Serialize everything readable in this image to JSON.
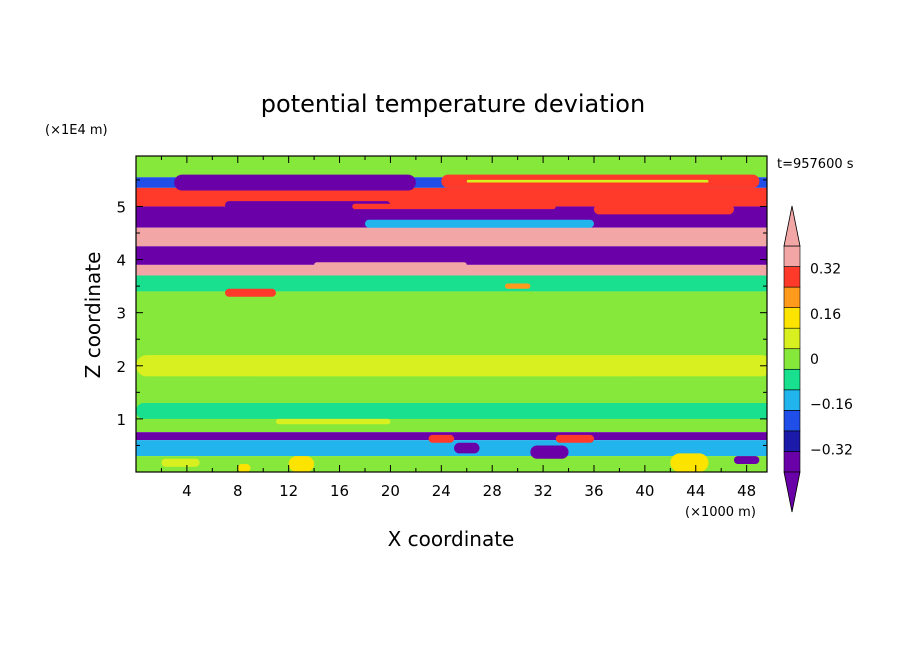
{
  "chart_data": {
    "type": "heatmap",
    "title": "potential temperature deviation",
    "xlabel": "X coordinate",
    "ylabel": "Z coordinate",
    "x_unit": "(×1000 m)",
    "y_unit": "(×1E4 m)",
    "time_label": "t=957600 s",
    "xlim": [
      0,
      49.6
    ],
    "ylim": [
      0,
      5.95
    ],
    "x_ticks": [
      4,
      8,
      12,
      16,
      20,
      24,
      28,
      32,
      36,
      40,
      44,
      48
    ],
    "y_ticks": [
      1,
      2,
      3,
      4,
      5
    ],
    "colorbar": {
      "labels": [
        "0.32",
        "0.16",
        "0",
        "−0.16",
        "−0.32"
      ],
      "label_values": [
        0.32,
        0.16,
        0,
        -0.16,
        -0.32
      ],
      "levels": [
        -0.4,
        -0.32,
        -0.24,
        -0.16,
        -0.08,
        0,
        0.08,
        0.16,
        0.24,
        0.32,
        0.4
      ],
      "colors": [
        "#6a00a8",
        "#1c1aa8",
        "#1f4fe8",
        "#22b4ec",
        "#18e08f",
        "#86e83a",
        "#d8f020",
        "#fde400",
        "#ff9a1c",
        "#ff3a2a",
        "#f3a6a6"
      ],
      "extend": "both"
    },
    "bands": [
      {
        "z0": 5.55,
        "z1": 5.95,
        "value": 0.0
      },
      {
        "z0": 5.35,
        "z1": 5.55,
        "value": -0.18
      },
      {
        "z0": 5.0,
        "z1": 5.35,
        "value": 0.36
      },
      {
        "z0": 4.6,
        "z1": 5.0,
        "value": -0.42
      },
      {
        "z0": 4.25,
        "z1": 4.6,
        "value": 0.4
      },
      {
        "z0": 3.9,
        "z1": 4.25,
        "value": -0.42
      },
      {
        "z0": 3.7,
        "z1": 3.9,
        "value": 0.4
      },
      {
        "z0": 3.4,
        "z1": 3.7,
        "value": -0.04
      },
      {
        "z0": 0.75,
        "z1": 3.4,
        "value": 0.02
      },
      {
        "z0": 0.6,
        "z1": 0.75,
        "value": -0.4
      },
      {
        "z0": 0.3,
        "z1": 0.6,
        "value": -0.12
      },
      {
        "z0": 0.0,
        "z1": 0.3,
        "value": 0.05
      }
    ],
    "features": [
      {
        "x0": 3,
        "x1": 22,
        "z0": 5.3,
        "z1": 5.6,
        "value": -0.44
      },
      {
        "x0": 24,
        "x1": 49,
        "z0": 5.35,
        "z1": 5.6,
        "value": 0.38
      },
      {
        "x0": 26,
        "x1": 45,
        "z0": 5.45,
        "z1": 5.5,
        "value": 0.12
      },
      {
        "x0": 7,
        "x1": 20,
        "z0": 4.95,
        "z1": 5.1,
        "value": -0.4
      },
      {
        "x0": 36,
        "x1": 47,
        "z0": 4.85,
        "z1": 5.05,
        "value": 0.38
      },
      {
        "x0": 17,
        "x1": 33,
        "z0": 4.95,
        "z1": 5.05,
        "value": 0.38
      },
      {
        "x0": 18,
        "x1": 36,
        "z0": 4.6,
        "z1": 4.75,
        "value": -0.1
      },
      {
        "x0": 10,
        "x1": 30,
        "z0": 4.3,
        "z1": 4.45,
        "value": 0.4
      },
      {
        "x0": 14,
        "x1": 26,
        "z0": 3.85,
        "z1": 3.95,
        "value": 0.4
      },
      {
        "x0": 7,
        "x1": 11,
        "z0": 3.3,
        "z1": 3.45,
        "value": 0.38
      },
      {
        "x0": 29,
        "x1": 31,
        "z0": 3.45,
        "z1": 3.55,
        "value": 0.3
      },
      {
        "x0": 0,
        "x1": 50,
        "z0": 1.8,
        "z1": 2.2,
        "value": 0.09
      },
      {
        "x0": 0,
        "x1": 50,
        "z0": 1.0,
        "z1": 1.3,
        "value": -0.02
      },
      {
        "x0": 11,
        "x1": 20,
        "z0": 0.9,
        "z1": 1.0,
        "value": 0.09
      },
      {
        "x0": 24,
        "x1": 34,
        "z0": 1.1,
        "z1": 1.2,
        "value": -0.08
      },
      {
        "x0": 23,
        "x1": 25,
        "z0": 0.55,
        "z1": 0.7,
        "value": 0.38
      },
      {
        "x0": 33,
        "x1": 36,
        "z0": 0.55,
        "z1": 0.7,
        "value": 0.38
      },
      {
        "x0": 25,
        "x1": 27,
        "z0": 0.35,
        "z1": 0.55,
        "value": -0.35
      },
      {
        "x0": 31,
        "x1": 34,
        "z0": 0.25,
        "z1": 0.5,
        "value": -0.35
      },
      {
        "x0": 12,
        "x1": 14,
        "z0": 0.0,
        "z1": 0.3,
        "value": 0.22
      },
      {
        "x0": 8,
        "x1": 9,
        "z0": 0.0,
        "z1": 0.15,
        "value": 0.2
      },
      {
        "x0": 42,
        "x1": 45,
        "z0": 0.0,
        "z1": 0.35,
        "value": 0.2
      },
      {
        "x0": 2,
        "x1": 5,
        "z0": 0.1,
        "z1": 0.25,
        "value": 0.14
      },
      {
        "x0": 47,
        "x1": 49,
        "z0": 0.15,
        "z1": 0.3,
        "value": -0.35
      }
    ]
  }
}
